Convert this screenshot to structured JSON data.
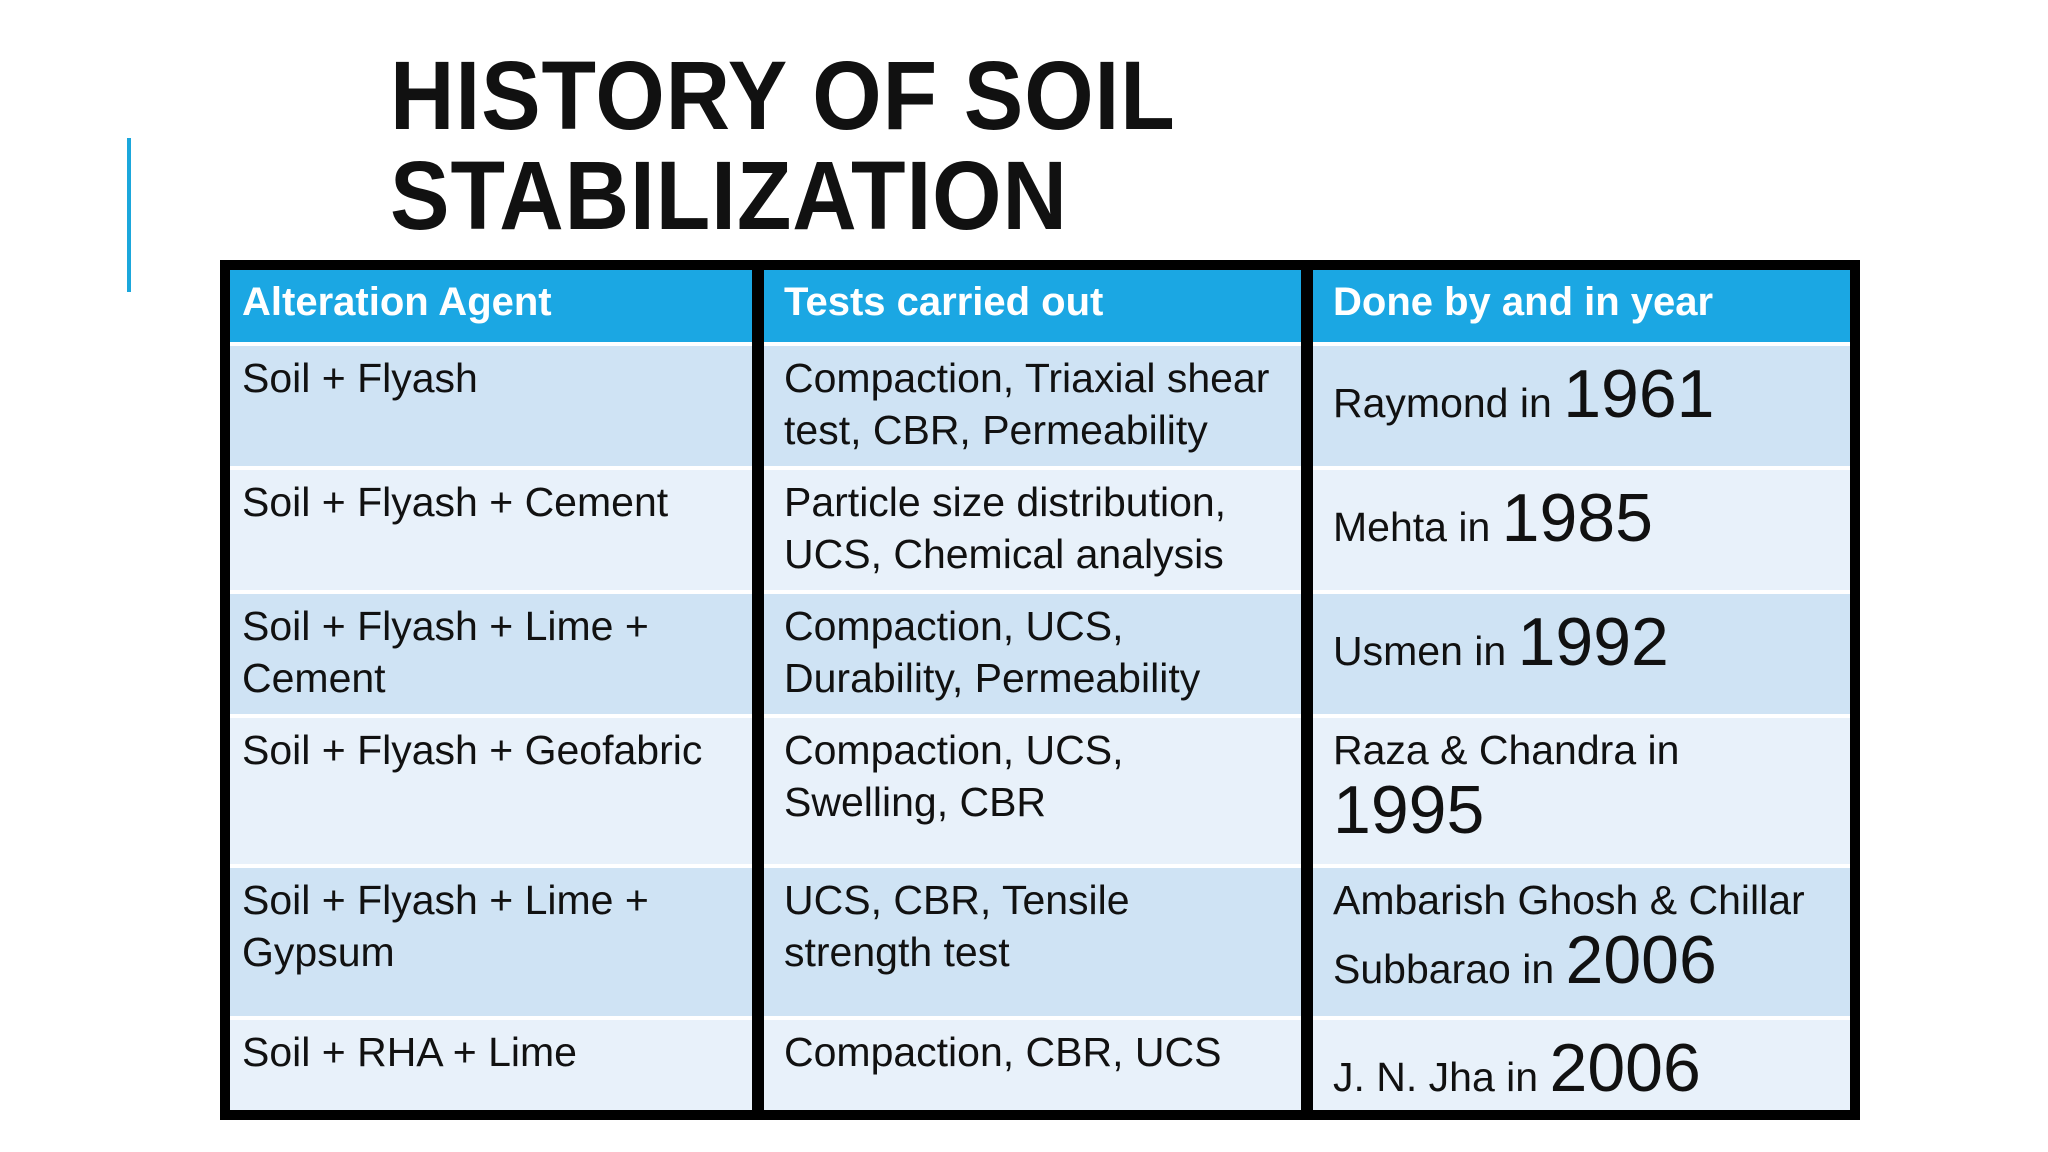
{
  "slide": {
    "title_line1": "HISTORY OF SOIL",
    "title_line2": "STABILIZATION",
    "accent_color": "#1ba7dc"
  },
  "table": {
    "header_color": "#1ba7e3",
    "headers": [
      "Alteration Agent",
      "Tests carried out",
      "Done by and  in year"
    ],
    "rows": [
      {
        "agent": "Soil + Flyash",
        "tests": "Compaction, Triaxial shear test, CBR, Permeability",
        "done_by": "Raymond in",
        "year": "1961"
      },
      {
        "agent": "Soil + Flyash + Cement",
        "tests": "Particle size distribution, UCS, Chemical analysis",
        "done_by": "Mehta in",
        "year": "1985"
      },
      {
        "agent": "Soil + Flyash + Lime + Cement",
        "tests": "Compaction, UCS, Durability, Permeability",
        "done_by": "Usmen in",
        "year": "1992"
      },
      {
        "agent": "Soil + Flyash + Geofabric",
        "tests": "Compaction, UCS, Swelling, CBR",
        "done_by": "Raza & Chandra in",
        "year": "1995"
      },
      {
        "agent": "Soil + Flyash + Lime + Gypsum",
        "tests": "UCS, CBR, Tensile strength test",
        "done_by_line1": "Ambarish Ghosh & Chillar",
        "done_by": "Subbarao in",
        "year": "2006"
      },
      {
        "agent": "Soil + RHA + Lime",
        "tests": "Compaction, CBR, UCS",
        "done_by": "J. N. Jha in",
        "year": "2006"
      }
    ]
  }
}
